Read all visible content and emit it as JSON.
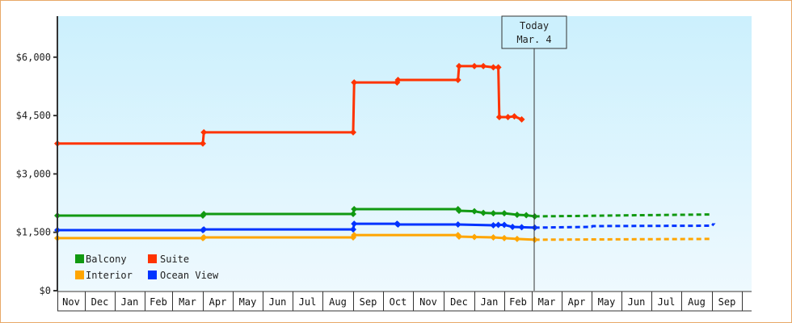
{
  "chart_data": {
    "type": "line",
    "title": "",
    "xlabel": "",
    "ylabel": "",
    "ylim": [
      0,
      6800
    ],
    "yticks": [
      {
        "value": 0,
        "label": "$0"
      },
      {
        "value": 1500,
        "label": "$1,500"
      },
      {
        "value": 3000,
        "label": "$3,000"
      },
      {
        "value": 4500,
        "label": "$4,500"
      },
      {
        "value": 6000,
        "label": "$6,000"
      }
    ],
    "months": [
      "Nov",
      "Dec",
      "Jan",
      "Feb",
      "Mar",
      "Apr",
      "May",
      "Jun",
      "Jul",
      "Aug",
      "Sep",
      "Oct",
      "Nov",
      "Dec",
      "Jan",
      "Feb",
      "Mar",
      "Apr",
      "May",
      "Jun",
      "Jul",
      "Aug",
      "Sep"
    ],
    "grid": false,
    "legend_position": "bottom-left inside",
    "annotation": {
      "line1": "Today",
      "line2": "Mar. 4"
    },
    "series": [
      {
        "name": "Balcony",
        "color": "#119911",
        "points": [
          [
            "Nov 1",
            1930
          ],
          [
            "Apr 1",
            1930
          ],
          [
            "Apr 2",
            1970
          ],
          [
            "Sep 1",
            1970
          ],
          [
            "Sep 2",
            2095
          ],
          [
            "Dec 15",
            2095
          ],
          [
            "Dec 16",
            2055
          ],
          [
            "Jan 1",
            2040
          ],
          [
            "Jan 10",
            2000
          ],
          [
            "Jan 20",
            1990
          ],
          [
            "Feb 1",
            1990
          ],
          [
            "Feb 15",
            1950
          ],
          [
            "Feb 25",
            1940
          ],
          [
            "Mar 4",
            1910
          ]
        ],
        "forecast": [
          [
            "Mar 4",
            1910
          ],
          [
            "Apr 15",
            1920
          ],
          [
            "Jun 1",
            1935
          ],
          [
            "Aug 1",
            1950
          ],
          [
            "Oct 1",
            1960
          ]
        ]
      },
      {
        "name": "Suite",
        "color": "#ff3300",
        "points": [
          [
            "Nov 1",
            3780
          ],
          [
            "Apr 1",
            3780
          ],
          [
            "Apr 2",
            4070
          ],
          [
            "Sep 1",
            4070
          ],
          [
            "Sep 2",
            5350
          ],
          [
            "Oct 15",
            5350
          ],
          [
            "Oct 16",
            5415
          ],
          [
            "Dec 15",
            5415
          ],
          [
            "Dec 16",
            5770
          ],
          [
            "Jan 1",
            5770
          ],
          [
            "Jan 10",
            5770
          ],
          [
            "Jan 20",
            5740
          ],
          [
            "Jan 25",
            5740
          ],
          [
            "Jan 26",
            4460
          ],
          [
            "Feb 5",
            4460
          ],
          [
            "Feb 12",
            4480
          ],
          [
            "Feb 20",
            4400
          ]
        ],
        "forecast": []
      },
      {
        "name": "Interior",
        "color": "#ffa500",
        "points": [
          [
            "Nov 1",
            1350
          ],
          [
            "Apr 1",
            1350
          ],
          [
            "Apr 2",
            1370
          ],
          [
            "Sep 1",
            1370
          ],
          [
            "Sep 2",
            1430
          ],
          [
            "Dec 15",
            1430
          ],
          [
            "Dec 16",
            1390
          ],
          [
            "Jan 1",
            1380
          ],
          [
            "Jan 20",
            1370
          ],
          [
            "Feb 1",
            1350
          ],
          [
            "Feb 15",
            1330
          ],
          [
            "Mar 4",
            1310
          ]
        ],
        "forecast": [
          [
            "Mar 4",
            1310
          ],
          [
            "Jun 1",
            1320
          ],
          [
            "Oct 1",
            1330
          ]
        ]
      },
      {
        "name": "Ocean View",
        "color": "#0033ff",
        "points": [
          [
            "Nov 1",
            1555
          ],
          [
            "Apr 1",
            1555
          ],
          [
            "Apr 2",
            1575
          ],
          [
            "Sep 1",
            1575
          ],
          [
            "Sep 2",
            1720
          ],
          [
            "Oct 15",
            1720
          ],
          [
            "Oct 16",
            1700
          ],
          [
            "Dec 15",
            1700
          ],
          [
            "Jan 20",
            1680
          ],
          [
            "Jan 25",
            1690
          ],
          [
            "Feb 1",
            1690
          ],
          [
            "Feb 10",
            1640
          ],
          [
            "Feb 20",
            1630
          ],
          [
            "Mar 4",
            1620
          ]
        ],
        "forecast": [
          [
            "Mar 4",
            1620
          ],
          [
            "May 1",
            1640
          ],
          [
            "May 2",
            1660
          ],
          [
            "Sep 1",
            1670
          ],
          [
            "Sep 2",
            1700
          ],
          [
            "Oct 1",
            1700
          ]
        ]
      }
    ]
  },
  "legend": [
    {
      "label": "Balcony",
      "color": "#119911"
    },
    {
      "label": "Suite",
      "color": "#ff3300"
    },
    {
      "label": "Interior",
      "color": "#ffa500"
    },
    {
      "label": "Ocean View",
      "color": "#0033ff"
    }
  ]
}
